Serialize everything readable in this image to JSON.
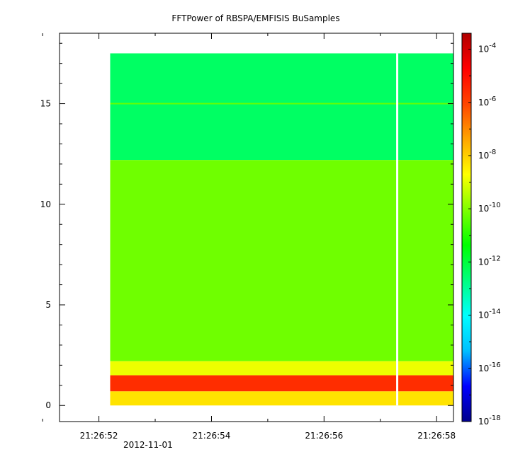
{
  "chart_data": {
    "type": "heatmap",
    "title": "FFTPower of RBSPA/EMFISIS  BuSamples",
    "xlabel": "",
    "ylabel": "",
    "x_tick_labels": [
      "21:26:52",
      "21:26:54",
      "21:26:56",
      "21:26:58"
    ],
    "x_date_label": "2012-11-01",
    "x_range_seconds": [
      51.3,
      58.3
    ],
    "y_ticks": [
      0,
      5,
      10,
      15
    ],
    "ylim": [
      -0.8,
      18.5
    ],
    "data_y_range": [
      0,
      17.5
    ],
    "data_x_range_seconds": [
      52.2,
      58.3
    ],
    "gap_x_seconds": 57.3,
    "colorbar": {
      "scale": "log",
      "range": [
        "1e-18",
        "1e-3.4"
      ],
      "tick_base": "10",
      "tick_exponents": [
        "-4",
        "-6",
        "-8",
        "-10",
        "-12",
        "-14",
        "-16",
        "-18"
      ],
      "colors": [
        "#00008b",
        "#0000ff",
        "#00bfff",
        "#00ffff",
        "#00ff7f",
        "#00ff00",
        "#7fff00",
        "#ffff00",
        "#ffa500",
        "#ff4500",
        "#ff0000",
        "#b00000"
      ]
    },
    "bands": [
      {
        "y_from": 12.2,
        "y_to": 17.5,
        "log_power": -12.4
      },
      {
        "y_from": 2.2,
        "y_to": 12.2,
        "log_power": -10.2
      },
      {
        "y_from": 1.5,
        "y_to": 2.2,
        "log_power": -8.9
      },
      {
        "y_from": 0.7,
        "y_to": 1.5,
        "log_power": -5.6
      },
      {
        "y_from": 0.0,
        "y_to": 0.7,
        "log_power": -8.3
      }
    ],
    "lines": [
      {
        "y": 15.0,
        "log_power": -10.3
      }
    ]
  }
}
